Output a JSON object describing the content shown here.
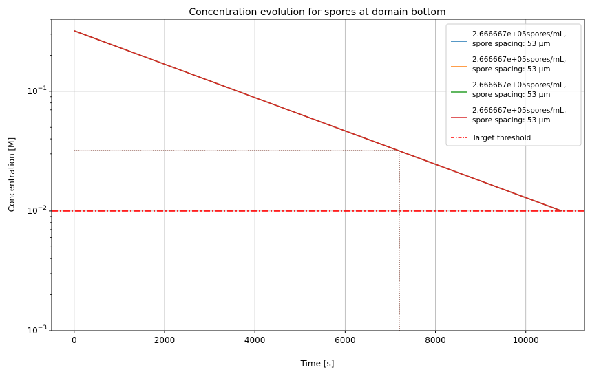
{
  "chart_data": {
    "type": "line",
    "title": "Concentration evolution for spores at domain bottom",
    "xlabel": "Time [s]",
    "ylabel": "Concentration [M]",
    "xlim": [
      -500,
      11300
    ],
    "ylim": [
      0.001,
      0.4
    ],
    "yscale": "log",
    "grid": true,
    "legend_position": "top-right",
    "x_ticks": [
      0,
      2000,
      4000,
      6000,
      8000,
      10000
    ],
    "x_tick_labels": [
      "0",
      "2000",
      "4000",
      "6000",
      "8000",
      "10000"
    ],
    "y_ticks": [
      0.001,
      0.01,
      0.1
    ],
    "y_tick_labels": [
      {
        "base": "10",
        "exp": "−3"
      },
      {
        "base": "10",
        "exp": "−2"
      },
      {
        "base": "10",
        "exp": "−1"
      }
    ],
    "series": [
      {
        "name": "2.666667e+05spores/mL,\nspore spacing: 53 μm",
        "color": "#1f77b4",
        "x": [
          0,
          10800
        ],
        "y": [
          0.32,
          0.01
        ]
      },
      {
        "name": "2.666667e+05spores/mL,\nspore spacing: 53 μm",
        "color": "#ff7f0e",
        "x": [
          0,
          10800
        ],
        "y": [
          0.32,
          0.01
        ]
      },
      {
        "name": "2.666667e+05spores/mL,\nspore spacing: 53 μm",
        "color": "#2ca02c",
        "x": [
          0,
          10800
        ],
        "y": [
          0.32,
          0.01
        ]
      },
      {
        "name": "2.666667e+05spores/mL,\nspore spacing: 53 μm",
        "color": "#d62728",
        "x": [
          0,
          10800
        ],
        "y": [
          0.32,
          0.01
        ]
      }
    ],
    "threshold": {
      "name": "Target threshold",
      "y": 0.01,
      "color": "#ff0000",
      "style": "dashdot"
    },
    "marker_lines": {
      "color": "#8c564b",
      "style": "dotted",
      "x": 7200,
      "y": 0.032
    }
  }
}
